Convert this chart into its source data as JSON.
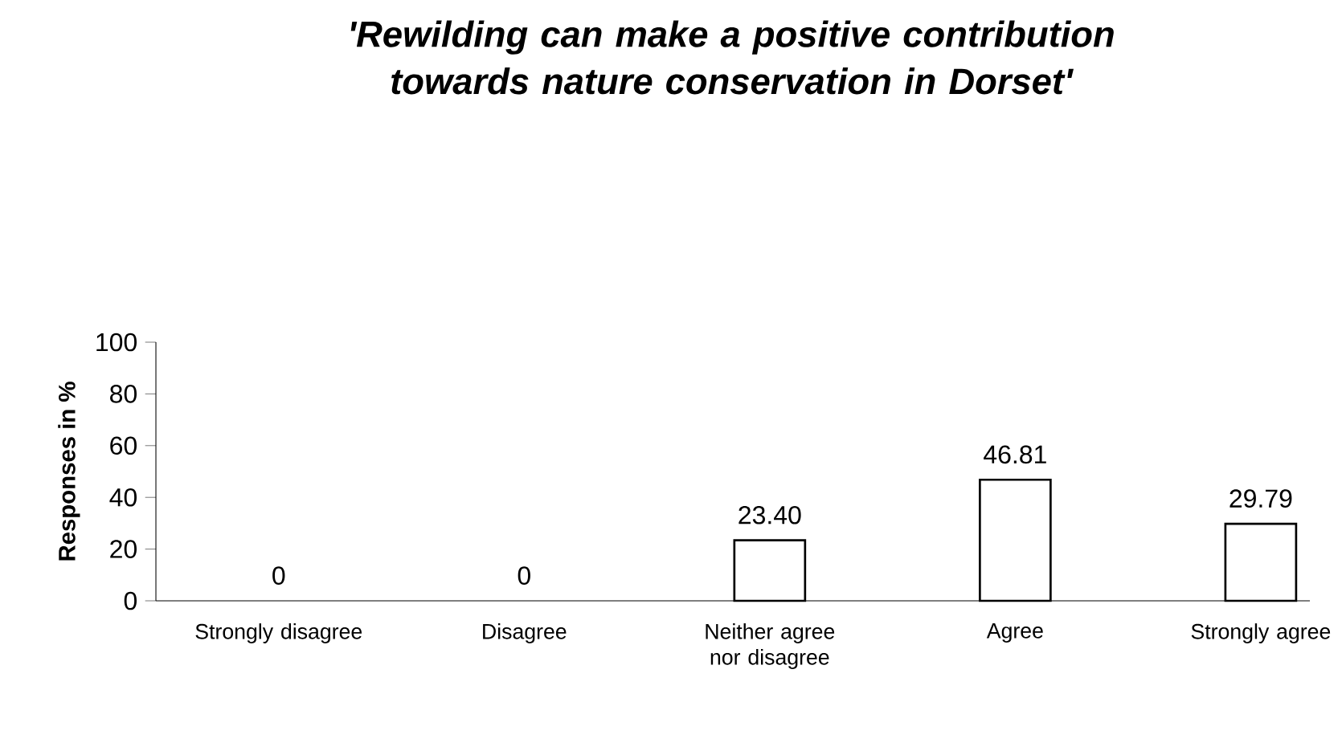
{
  "chart_data": {
    "type": "bar",
    "title": "'Rewilding can make a positive contribution towards nature conservation in Dorset'",
    "ylabel": "Responses in %",
    "categories": [
      "Strongly disagree",
      "Disagree",
      "Neither agree nor disagree",
      "Agree",
      "Strongly agree"
    ],
    "values": [
      0,
      0,
      23.4,
      46.81,
      29.79
    ],
    "value_labels": [
      "0",
      "0",
      "23.40",
      "46.81",
      "29.79"
    ],
    "color": "#ffffff",
    "ylim": [
      0,
      100
    ],
    "yticks": [
      0,
      20,
      40,
      60,
      80,
      100
    ]
  }
}
